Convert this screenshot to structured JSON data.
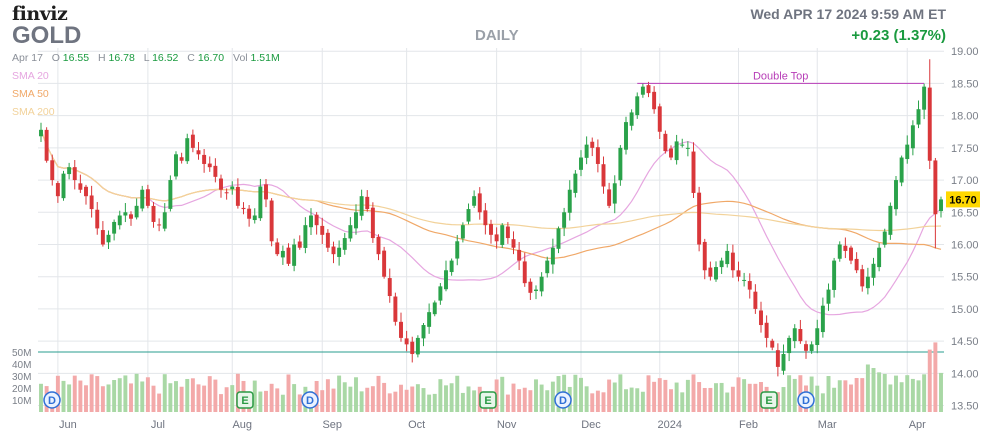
{
  "header": {
    "brand": "finviz",
    "ticker": "GOLD",
    "period": "DAILY",
    "datetime": "Wed APR 17 2024 9:59 AM ET",
    "change": "+0.23 (1.37%)"
  },
  "ohlc": {
    "date": "Apr 17",
    "open_label": "O",
    "open": "16.55",
    "high_label": "H",
    "high": "16.78",
    "low_label": "L",
    "low": "16.52",
    "close_label": "C",
    "close": "16.70",
    "vol_label": "Vol",
    "volume": "1.51M"
  },
  "legend": [
    {
      "label": "SMA 20",
      "color": "#e6a6e0"
    },
    {
      "label": "SMA 50",
      "color": "#f0a868"
    },
    {
      "label": "SMA 200",
      "color": "#f2d29a"
    }
  ],
  "colors": {
    "up": "#2aa24a",
    "down": "#d9373a",
    "vol_up": "#a9d8a5",
    "vol_down": "#f3a9a9",
    "grid": "#e3e6ea",
    "annotation": "#b73db7",
    "volume_line": "#2a9d8f"
  },
  "chart_data": {
    "type": "candlestick",
    "y_axis": {
      "ticks": [
        "13.50",
        "14.00",
        "14.50",
        "15.00",
        "15.50",
        "16.00",
        "16.50",
        "17.00",
        "17.50",
        "18.00",
        "18.50",
        "19.00"
      ],
      "ylim": [
        13.4,
        19.05
      ],
      "side": "right"
    },
    "x_axis": {
      "months": [
        "Jun",
        "Jul",
        "Aug",
        "Sep",
        "Oct",
        "Nov",
        "Dec",
        "2024",
        "Feb",
        "Mar",
        "Apr"
      ]
    },
    "last_price_label": "16.70",
    "annotation": {
      "label": "Double Top",
      "price": 18.5
    },
    "volume_axis": {
      "ticks": [
        "10M",
        "20M",
        "30M",
        "40M",
        "50M"
      ],
      "max": 60,
      "reference_line": 50
    },
    "events": [
      {
        "letter": "D",
        "month_index": 0
      },
      {
        "letter": "E",
        "month_index": 2
      },
      {
        "letter": "D",
        "month_index": 3
      },
      {
        "letter": "E",
        "month_index": 5
      },
      {
        "letter": "D",
        "month_index": 6
      },
      {
        "letter": "E",
        "month_index": 8
      },
      {
        "letter": "D",
        "month_index": 9
      }
    ],
    "closes": [
      17.78,
      17.3,
      17.0,
      16.75,
      17.1,
      17.2,
      17.0,
      16.85,
      16.75,
      16.55,
      16.25,
      16.0,
      16.15,
      16.35,
      16.45,
      16.5,
      16.4,
      16.6,
      16.85,
      16.6,
      16.35,
      16.3,
      16.5,
      17.0,
      17.4,
      17.3,
      17.65,
      17.5,
      17.4,
      17.25,
      17.2,
      17.05,
      16.85,
      16.8,
      16.9,
      16.6,
      16.55,
      16.4,
      16.45,
      16.9,
      16.7,
      16.05,
      15.85,
      15.9,
      15.7,
      16.0,
      15.95,
      16.3,
      16.45,
      16.3,
      16.15,
      15.95,
      15.85,
      15.95,
      16.1,
      16.3,
      16.5,
      16.75,
      16.55,
      16.1,
      15.85,
      15.5,
      15.2,
      14.8,
      14.55,
      14.45,
      14.3,
      14.55,
      14.75,
      14.95,
      15.1,
      15.35,
      15.6,
      15.75,
      16.05,
      16.3,
      16.55,
      16.75,
      16.5,
      16.3,
      16.15,
      16.05,
      16.3,
      16.1,
      15.95,
      15.75,
      15.4,
      15.25,
      15.3,
      15.5,
      15.75,
      15.95,
      16.25,
      16.5,
      16.85,
      17.1,
      17.35,
      17.55,
      17.5,
      17.25,
      16.9,
      16.6,
      16.95,
      17.5,
      17.9,
      18.05,
      18.3,
      18.45,
      18.35,
      18.1,
      17.75,
      17.45,
      17.35,
      17.6,
      17.55,
      17.5,
      16.8,
      16.0,
      15.6,
      15.5,
      15.65,
      15.75,
      15.9,
      15.6,
      15.5,
      15.45,
      15.3,
      15.0,
      14.75,
      14.55,
      14.4,
      14.1,
      14.3,
      14.55,
      14.7,
      14.5,
      14.35,
      14.45,
      14.7,
      15.05,
      15.3,
      15.75,
      16.0,
      15.9,
      15.75,
      15.6,
      15.35,
      15.5,
      15.7,
      15.95,
      16.2,
      16.6,
      17.0,
      17.35,
      17.55,
      17.85,
      18.1,
      18.45,
      17.3,
      16.47,
      16.7
    ],
    "sma_20_end": 16.85,
    "sma_50_end": 15.75,
    "sma_200_end": 16.3
  }
}
